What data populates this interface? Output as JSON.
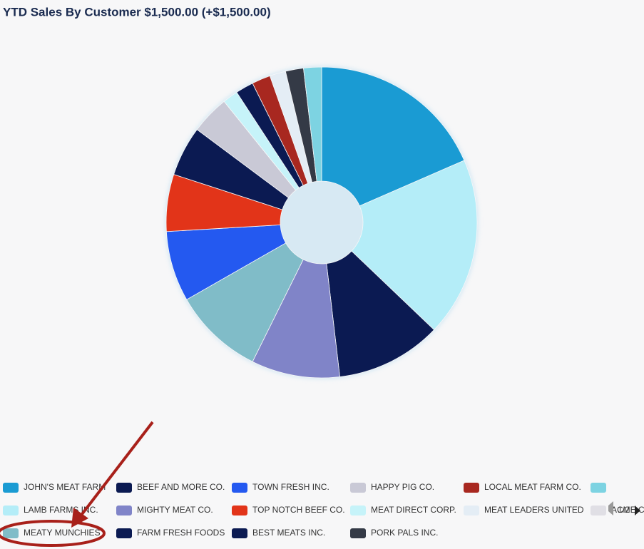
{
  "chart_data": {
    "type": "pie",
    "title": "YTD Sales By Customer $1,500.00 (+$1,500.00)",
    "categories": [
      "JOHN'S MEAT FARM",
      "BEEF AND MORE CO.",
      "TOWN FRESH INC.",
      "HAPPY PIG CO.",
      "LOCAL MEAT FARM CO.",
      null,
      "LAMB FARMS INC.",
      "MIGHTY MEAT CO.",
      "TOP NOTCH BEEF CO.",
      "MEAT DIRECT CORP.",
      "MEAT LEADERS UNITED",
      "ACME CORP.",
      "MEATY MUNCHIES",
      "FARM FRESH FOODS",
      "BEST MEATS INC.",
      "PORK PALS INC."
    ],
    "values": [
      277,
      165,
      110,
      60,
      29,
      28,
      280,
      138,
      89,
      24,
      25,
      null,
      141,
      78,
      28,
      28
    ],
    "colors": [
      "#1a9bd3",
      "#0b1a52",
      "#2459f0",
      "#c9c9d6",
      "#a82820",
      "#7dd3e2",
      "#b4edf8",
      "#8084c8",
      "#e23419",
      "#c6f3f9",
      "#e4edf5",
      "#d0cfd9",
      "#80bcc8",
      "#0b1a52",
      "#0b1a52",
      "#343a46"
    ],
    "legend_page": "1/2"
  }
}
